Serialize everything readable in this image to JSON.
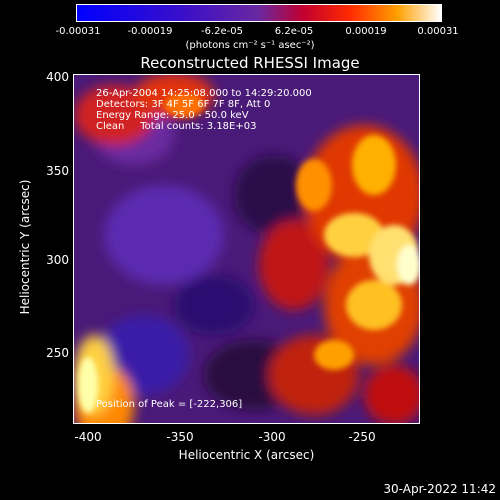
{
  "colorbar": {
    "ticks": [
      "-0.00031",
      "-0.00019",
      "-6.2e-05",
      "6.2e-05",
      "0.00019",
      "0.00031"
    ],
    "units": "(photons cm⁻² s⁻¹ asec⁻²)"
  },
  "plot": {
    "title": "Reconstructed RHESSI Image",
    "annotations": {
      "time_range": "26-Apr-2004 14:25:08.000 to 14:29:20.000",
      "detectors": "Detectors: 3F 4F 5F 6F 7F 8F, Att 0",
      "energy": "Energy Range: 25.0 - 50.0 keV",
      "clean": "Clean     Total counts: 3.18E+03",
      "peak": "Position of Peak = [-222,306]"
    },
    "xlabel": "Heliocentric X (arcsec)",
    "ylabel": "Heliocentric Y (arcsec)",
    "xticks": [
      "-400",
      "-350",
      "-300",
      "-250"
    ],
    "yticks": [
      "400",
      "350",
      "300",
      "250"
    ]
  },
  "timestamp": "30-Apr-2022 11:42",
  "colors": {
    "background": "#000000",
    "foreground": "#ffffff"
  }
}
